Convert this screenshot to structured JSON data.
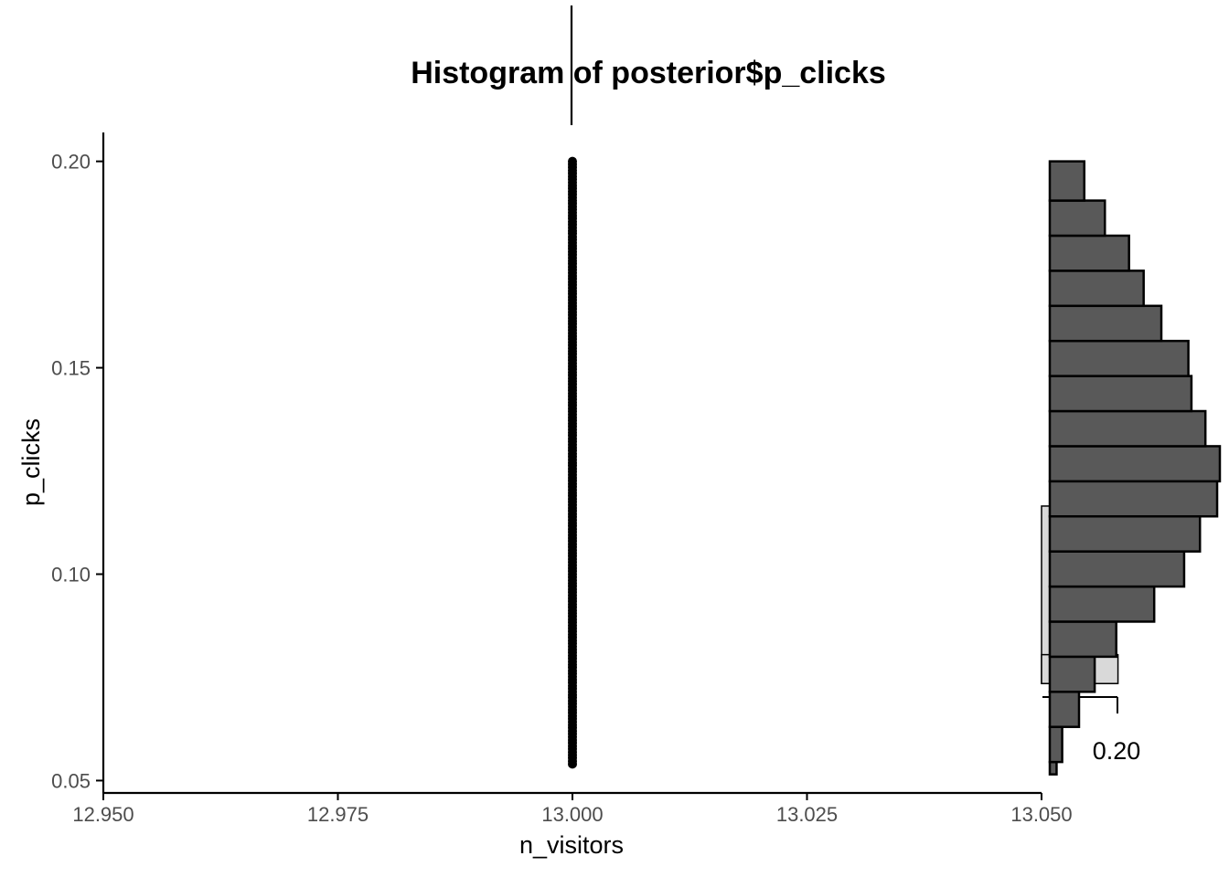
{
  "chart_data": {
    "type": "scatter",
    "title": "Histogram of posterior$p_clicks",
    "xlabel": "n_visitors",
    "ylabel": "p_clicks",
    "xlim": [
      12.95,
      13.05
    ],
    "ylim": [
      0.047,
      0.207
    ],
    "x_ticks": [
      "12.950",
      "12.975",
      "13.000",
      "13.025",
      "13.050"
    ],
    "x_tick_values": [
      12.95,
      12.975,
      13.0,
      13.025,
      13.05
    ],
    "y_ticks": [
      "0.05",
      "0.10",
      "0.15",
      "0.20"
    ],
    "y_tick_values": [
      0.05,
      0.1,
      0.15,
      0.2
    ],
    "points": {
      "x": 13.0,
      "y_min": 0.054,
      "y_max": 0.2,
      "dense_from": 0.066
    },
    "marginal_histogram": {
      "bin_edges": [
        0.0515,
        0.0545,
        0.063,
        0.0715,
        0.08,
        0.0885,
        0.097,
        0.1055,
        0.114,
        0.1225,
        0.131,
        0.1395,
        0.148,
        0.1565,
        0.165,
        0.1735,
        0.182,
        0.1905,
        0.2
      ],
      "relative_heights": [
        0.04,
        0.073,
        0.172,
        0.264,
        0.391,
        0.614,
        0.79,
        0.883,
        0.984,
        1.0,
        0.915,
        0.833,
        0.815,
        0.656,
        0.552,
        0.466,
        0.324,
        0.203
      ]
    },
    "background_histogram": {
      "bars": [
        {
          "y0": 0.0735,
          "y1": 0.1165,
          "rel_width": 0.043
        },
        {
          "y0": 0.0735,
          "y1": 0.0805,
          "rel_width": 0.444
        }
      ]
    },
    "inset_label": "0.20"
  }
}
